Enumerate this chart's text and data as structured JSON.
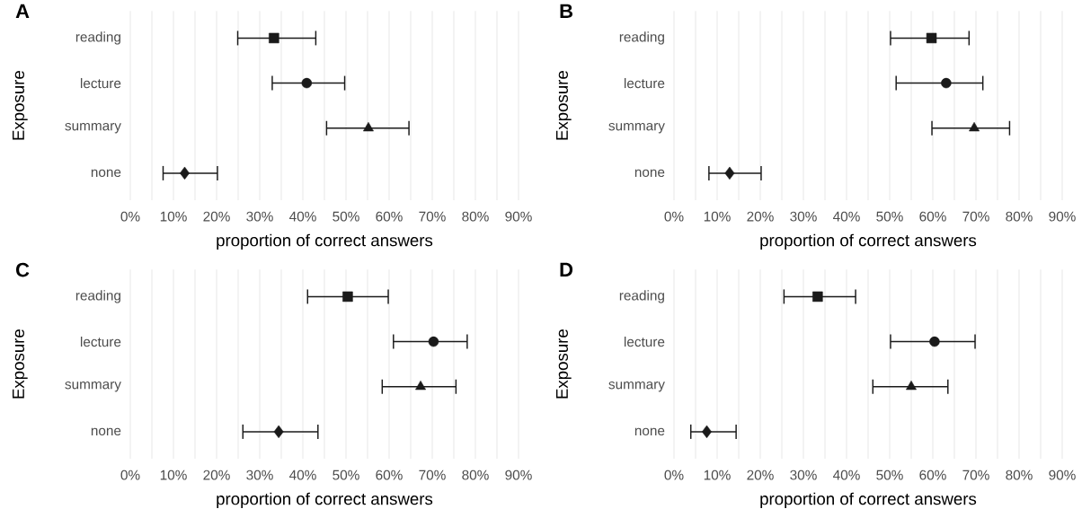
{
  "chart_data": [
    {
      "type": "scatter",
      "orientation": "horizontal",
      "title": "A",
      "xlabel": "proportion of correct answers",
      "ylabel": "Exposure",
      "categories": [
        "reading",
        "lecture",
        "summary",
        "none"
      ],
      "xlim": [
        0,
        90
      ],
      "xticks": [
        {
          "value": 0,
          "label": "0%"
        },
        {
          "value": 5,
          "label": null
        },
        {
          "value": 10,
          "label": "10%"
        },
        {
          "value": 15,
          "label": null
        },
        {
          "value": 20,
          "label": "20%"
        },
        {
          "value": 25,
          "label": null
        },
        {
          "value": 30,
          "label": "30%"
        },
        {
          "value": 35,
          "label": null
        },
        {
          "value": 40,
          "label": "40%"
        },
        {
          "value": 45,
          "label": null
        },
        {
          "value": 50,
          "label": "50%"
        },
        {
          "value": 55,
          "label": null
        },
        {
          "value": 60,
          "label": "60%"
        },
        {
          "value": 65,
          "label": null
        },
        {
          "value": 70,
          "label": "70%"
        },
        {
          "value": 75,
          "label": null
        },
        {
          "value": 80,
          "label": "80%"
        },
        {
          "value": 85,
          "label": null
        },
        {
          "value": 90,
          "label": "90%"
        }
      ],
      "grid": "x",
      "series": [
        {
          "color": "#1a1a1a",
          "marker": "square",
          "values": [
            33.3,
            null,
            null,
            null
          ],
          "errors": [
            [
              24.9,
              43.0
            ],
            null,
            null,
            null
          ]
        },
        {
          "color": "#1a1a1a",
          "marker": "circle",
          "values": [
            null,
            40.9,
            null,
            null
          ],
          "errors": [
            null,
            [
              32.9,
              49.7
            ],
            null,
            null
          ]
        },
        {
          "color": "#1a1a1a",
          "marker": "triangle",
          "values": [
            null,
            null,
            55.2,
            null
          ],
          "errors": [
            null,
            null,
            [
              45.5,
              64.6
            ],
            null
          ]
        },
        {
          "color": "#1a1a1a",
          "marker": "diamond",
          "values": [
            null,
            null,
            null,
            12.6
          ],
          "errors": [
            null,
            null,
            null,
            [
              7.6,
              20.2
            ]
          ]
        }
      ]
    },
    {
      "type": "scatter",
      "orientation": "horizontal",
      "title": "B",
      "xlabel": "proportion of correct answers",
      "ylabel": "Exposure",
      "categories": [
        "reading",
        "lecture",
        "summary",
        "none"
      ],
      "xlim": [
        0,
        90
      ],
      "xticks": [
        {
          "value": 0,
          "label": "0%"
        },
        {
          "value": 5,
          "label": null
        },
        {
          "value": 10,
          "label": "10%"
        },
        {
          "value": 15,
          "label": null
        },
        {
          "value": 20,
          "label": "20%"
        },
        {
          "value": 25,
          "label": null
        },
        {
          "value": 30,
          "label": "30%"
        },
        {
          "value": 35,
          "label": null
        },
        {
          "value": 40,
          "label": "40%"
        },
        {
          "value": 45,
          "label": null
        },
        {
          "value": 50,
          "label": "50%"
        },
        {
          "value": 55,
          "label": null
        },
        {
          "value": 60,
          "label": "60%"
        },
        {
          "value": 65,
          "label": null
        },
        {
          "value": 70,
          "label": "70%"
        },
        {
          "value": 75,
          "label": null
        },
        {
          "value": 80,
          "label": "80%"
        },
        {
          "value": 85,
          "label": null
        },
        {
          "value": 90,
          "label": "90%"
        }
      ],
      "grid": "x",
      "series": [
        {
          "color": "#1a1a1a",
          "marker": "square",
          "values": [
            59.7,
            null,
            null,
            null
          ],
          "errors": [
            [
              50.2,
              68.4
            ],
            null,
            null,
            null
          ]
        },
        {
          "color": "#1a1a1a",
          "marker": "circle",
          "values": [
            null,
            63.1,
            null,
            null
          ],
          "errors": [
            null,
            [
              51.5,
              71.6
            ],
            null,
            null
          ]
        },
        {
          "color": "#1a1a1a",
          "marker": "triangle",
          "values": [
            null,
            null,
            69.6,
            null
          ],
          "errors": [
            null,
            null,
            [
              59.8,
              77.8
            ],
            null
          ]
        },
        {
          "color": "#1a1a1a",
          "marker": "diamond",
          "values": [
            null,
            null,
            null,
            12.9
          ],
          "errors": [
            null,
            null,
            null,
            [
              8.1,
              20.2
            ]
          ]
        }
      ]
    },
    {
      "type": "scatter",
      "orientation": "horizontal",
      "title": "C",
      "xlabel": "proportion of correct answers",
      "ylabel": "Exposure",
      "categories": [
        "reading",
        "lecture",
        "summary",
        "none"
      ],
      "xlim": [
        0,
        90
      ],
      "xticks": [
        {
          "value": 0,
          "label": "0%"
        },
        {
          "value": 5,
          "label": null
        },
        {
          "value": 10,
          "label": "10%"
        },
        {
          "value": 15,
          "label": null
        },
        {
          "value": 20,
          "label": "20%"
        },
        {
          "value": 25,
          "label": null
        },
        {
          "value": 30,
          "label": "30%"
        },
        {
          "value": 35,
          "label": null
        },
        {
          "value": 40,
          "label": "40%"
        },
        {
          "value": 45,
          "label": null
        },
        {
          "value": 50,
          "label": "50%"
        },
        {
          "value": 55,
          "label": null
        },
        {
          "value": 60,
          "label": "60%"
        },
        {
          "value": 65,
          "label": null
        },
        {
          "value": 70,
          "label": "70%"
        },
        {
          "value": 75,
          "label": null
        },
        {
          "value": 80,
          "label": "80%"
        },
        {
          "value": 85,
          "label": null
        },
        {
          "value": 90,
          "label": "90%"
        }
      ],
      "grid": "x",
      "series": [
        {
          "color": "#1a1a1a",
          "marker": "square",
          "values": [
            50.4,
            null,
            null,
            null
          ],
          "errors": [
            [
              41.1,
              59.8
            ],
            null,
            null,
            null
          ]
        },
        {
          "color": "#1a1a1a",
          "marker": "circle",
          "values": [
            null,
            70.3,
            null,
            null
          ],
          "errors": [
            null,
            [
              61.0,
              78.1
            ],
            null,
            null
          ]
        },
        {
          "color": "#1a1a1a",
          "marker": "triangle",
          "values": [
            null,
            null,
            67.3,
            null
          ],
          "errors": [
            null,
            null,
            [
              58.4,
              75.5
            ],
            null
          ]
        },
        {
          "color": "#1a1a1a",
          "marker": "diamond",
          "values": [
            null,
            null,
            null,
            34.4
          ],
          "errors": [
            null,
            null,
            null,
            [
              26.1,
              43.5
            ]
          ]
        }
      ]
    },
    {
      "type": "scatter",
      "orientation": "horizontal",
      "title": "D",
      "xlabel": "proportion of correct answers",
      "ylabel": "Exposure",
      "categories": [
        "reading",
        "lecture",
        "summary",
        "none"
      ],
      "xlim": [
        0,
        90
      ],
      "xticks": [
        {
          "value": 0,
          "label": "0%"
        },
        {
          "value": 5,
          "label": null
        },
        {
          "value": 10,
          "label": "10%"
        },
        {
          "value": 15,
          "label": null
        },
        {
          "value": 20,
          "label": "20%"
        },
        {
          "value": 25,
          "label": null
        },
        {
          "value": 30,
          "label": "30%"
        },
        {
          "value": 35,
          "label": null
        },
        {
          "value": 40,
          "label": "40%"
        },
        {
          "value": 45,
          "label": null
        },
        {
          "value": 50,
          "label": "50%"
        },
        {
          "value": 55,
          "label": null
        },
        {
          "value": 60,
          "label": "60%"
        },
        {
          "value": 65,
          "label": null
        },
        {
          "value": 70,
          "label": "70%"
        },
        {
          "value": 75,
          "label": null
        },
        {
          "value": 80,
          "label": "80%"
        },
        {
          "value": 85,
          "label": null
        },
        {
          "value": 90,
          "label": "90%"
        }
      ],
      "grid": "x",
      "series": [
        {
          "color": "#1a1a1a",
          "marker": "square",
          "values": [
            33.3,
            null,
            null,
            null
          ],
          "errors": [
            [
              25.5,
              42.1
            ],
            null,
            null,
            null
          ]
        },
        {
          "color": "#1a1a1a",
          "marker": "circle",
          "values": [
            null,
            60.4,
            null,
            null
          ],
          "errors": [
            null,
            [
              50.2,
              69.8
            ],
            null,
            null
          ]
        },
        {
          "color": "#1a1a1a",
          "marker": "triangle",
          "values": [
            null,
            null,
            55.0,
            null
          ],
          "errors": [
            null,
            null,
            [
              46.1,
              63.5
            ],
            null
          ]
        },
        {
          "color": "#1a1a1a",
          "marker": "diamond",
          "values": [
            null,
            null,
            null,
            7.6
          ],
          "errors": [
            null,
            null,
            null,
            [
              3.9,
              14.4
            ]
          ]
        }
      ]
    }
  ]
}
